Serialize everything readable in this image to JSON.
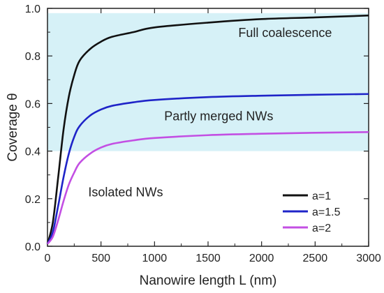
{
  "chart_data": {
    "type": "line",
    "xlabel": "Nanowire length L (nm)",
    "ylabel": "Coverage θ",
    "xlim": [
      0,
      3000
    ],
    "ylim": [
      0,
      1.0
    ],
    "x_ticks": [
      "0",
      "500",
      "1000",
      "1500",
      "2000",
      "2500",
      "3000"
    ],
    "y_ticks": [
      "0.0",
      "0.2",
      "0.4",
      "0.6",
      "0.8",
      "1.0"
    ],
    "shaded_region": {
      "y_from": 0.4,
      "y_to": 0.98,
      "color": "#d6f1f7"
    },
    "annotations": [
      {
        "text": "Full coalescence",
        "x": 2220,
        "y": 0.88
      },
      {
        "text": "Partly merged NWs",
        "x": 1600,
        "y": 0.53
      },
      {
        "text": "Isolated NWs",
        "x": 730,
        "y": 0.21
      }
    ],
    "legend_position": "bottom-right",
    "series": [
      {
        "name": "a=1",
        "color": "#111111",
        "x": [
          0,
          50,
          100,
          150,
          200,
          250,
          300,
          400,
          500,
          600,
          800,
          1000,
          1500,
          2000,
          2500,
          3000
        ],
        "y": [
          0.01,
          0.1,
          0.29,
          0.49,
          0.63,
          0.72,
          0.78,
          0.83,
          0.86,
          0.88,
          0.9,
          0.92,
          0.94,
          0.955,
          0.962,
          0.97
        ]
      },
      {
        "name": "a=1.5",
        "color": "#1f24c8",
        "x": [
          0,
          50,
          100,
          150,
          200,
          250,
          300,
          400,
          500,
          600,
          800,
          1000,
          1500,
          2000,
          2500,
          3000
        ],
        "y": [
          0.01,
          0.06,
          0.17,
          0.29,
          0.39,
          0.46,
          0.505,
          0.55,
          0.575,
          0.59,
          0.605,
          0.615,
          0.627,
          0.633,
          0.637,
          0.64
        ]
      },
      {
        "name": "a=2",
        "color": "#c34fe3",
        "x": [
          0,
          50,
          100,
          150,
          200,
          250,
          300,
          400,
          500,
          600,
          800,
          1000,
          1500,
          2000,
          2500,
          3000
        ],
        "y": [
          0.01,
          0.04,
          0.11,
          0.19,
          0.26,
          0.31,
          0.35,
          0.39,
          0.415,
          0.43,
          0.445,
          0.455,
          0.467,
          0.473,
          0.477,
          0.48
        ]
      }
    ]
  }
}
